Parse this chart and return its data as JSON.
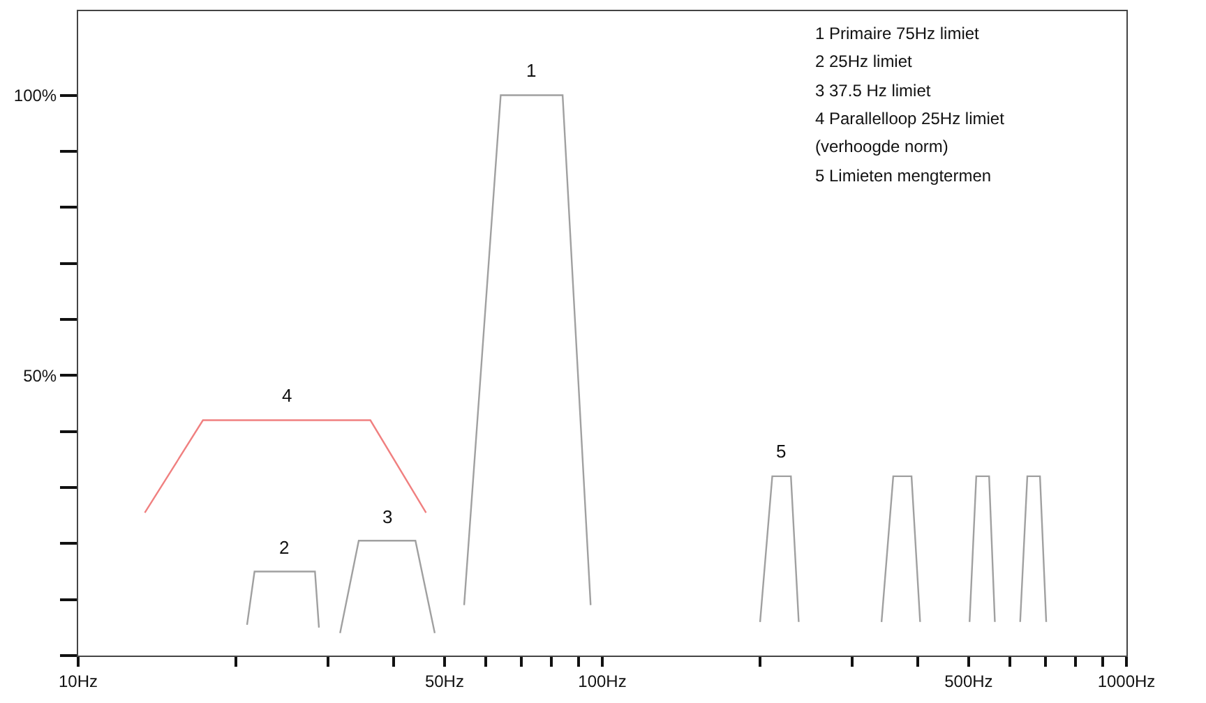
{
  "chart_data": {
    "type": "line",
    "series": [
      {
        "name": "1",
        "color": "#a0a0a0",
        "x": [
          54.5,
          64,
          84,
          95
        ],
        "values": [
          9,
          100,
          100,
          9
        ]
      },
      {
        "name": "2",
        "color": "#a0a0a0",
        "x": [
          21,
          21.7,
          28.3,
          28.8
        ],
        "values": [
          5.5,
          15,
          15,
          5
        ]
      },
      {
        "name": "3",
        "color": "#a0a0a0",
        "x": [
          31.6,
          34.3,
          44,
          47.9
        ],
        "values": [
          4,
          20.5,
          20.5,
          4
        ]
      },
      {
        "name": "4",
        "color": "#f08080",
        "x": [
          13.4,
          17.3,
          36.1,
          46.1
        ],
        "values": [
          25.5,
          42,
          42,
          25.5
        ]
      },
      {
        "name": "5",
        "color": "#a0a0a0",
        "x": [
          200,
          211,
          229,
          237,
          240,
          341,
          359,
          389,
          404,
          450,
          502,
          517,
          547,
          561,
          600,
          627,
          647,
          684,
          703
        ],
        "values": [
          6,
          32,
          32,
          6,
          null,
          6,
          32,
          32,
          6,
          null,
          6,
          32,
          32,
          6,
          null,
          6,
          32,
          32,
          6
        ]
      }
    ],
    "log": "x",
    "grid": false,
    "legend": false,
    "marker": "none",
    "line_style": "solid",
    "xlim": [
      10,
      1000
    ],
    "xticks": [
      {
        "value": 10,
        "label": "10Hz"
      },
      {
        "value": 20,
        "label": null
      },
      {
        "value": 30,
        "label": null
      },
      {
        "value": 40,
        "label": null
      },
      {
        "value": 50,
        "label": "50Hz"
      },
      {
        "value": 60,
        "label": null
      },
      {
        "value": 70,
        "label": null
      },
      {
        "value": 80,
        "label": null
      },
      {
        "value": 90,
        "label": null
      },
      {
        "value": 100,
        "label": "100Hz"
      },
      {
        "value": 200,
        "label": null
      },
      {
        "value": 300,
        "label": null
      },
      {
        "value": 400,
        "label": null
      },
      {
        "value": 500,
        "label": "500Hz"
      },
      {
        "value": 600,
        "label": null
      },
      {
        "value": 700,
        "label": null
      },
      {
        "value": 800,
        "label": null
      },
      {
        "value": 900,
        "label": null
      },
      {
        "value": 1000,
        "label": "1000Hz"
      }
    ],
    "ylim": [
      0,
      115
    ],
    "yticks": [
      {
        "value": 0,
        "label": null
      },
      {
        "value": 10,
        "label": null
      },
      {
        "value": 20,
        "label": null
      },
      {
        "value": 30,
        "label": null
      },
      {
        "value": 40,
        "label": null
      },
      {
        "value": 50,
        "label": "50%"
      },
      {
        "value": 60,
        "label": null
      },
      {
        "value": 70,
        "label": null
      },
      {
        "value": 80,
        "label": null
      },
      {
        "value": 90,
        "label": null
      },
      {
        "value": 100,
        "label": "100%"
      }
    ],
    "annotations": [
      "1 Primaire 75Hz limiet",
      "2 25Hz limiet",
      "3 37.5 Hz limiet",
      "4 Parallelloop 25Hz limiet",
      "(verhoogde norm)",
      "5 Limieten mengtermen"
    ]
  }
}
